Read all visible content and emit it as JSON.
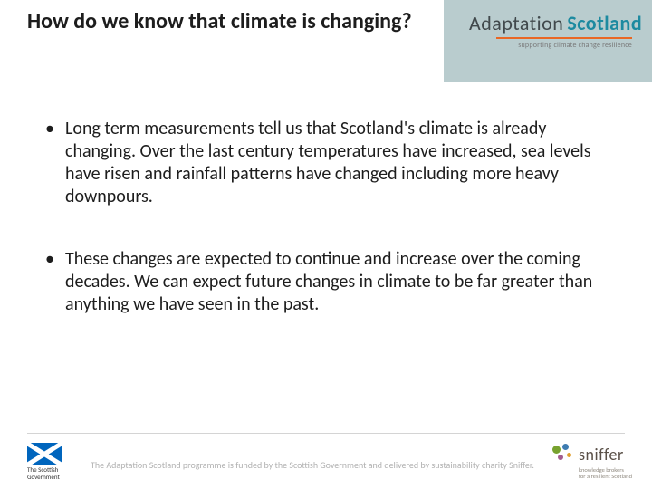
{
  "colors": {
    "header_band": "#b9ccce",
    "title_text": "#1d1d1d",
    "body_text": "#1d1d1d",
    "footer_text": "#b2b2b2",
    "rule": "#d4d4d4",
    "brand_orange": "#e96724",
    "brand_teal": "#1d8aa0",
    "brand_grey": "#41494c",
    "flag_blue": "#0065bd"
  },
  "typography": {
    "title_fontsize_pt": 18,
    "body_fontsize_pt": 15,
    "footer_fontsize_pt": 8
  },
  "header": {
    "title": "How do we know that climate is changing?",
    "brand": {
      "word_a": "Adaptation",
      "word_b": "Scotland",
      "tagline": "supporting climate change resilience"
    }
  },
  "bullets": [
    {
      "text": "Long term measurements tell us that Scotland's climate is already changing. Over the last century temperatures have increased, sea levels have risen and rainfall patterns have changed including more heavy downpours."
    },
    {
      "text": "These changes are expected to continue and increase over the coming decades. We can expect future changes in climate to be far greater than anything we have seen in the past."
    }
  ],
  "footer": {
    "gov_label": "The Scottish Government",
    "attribution": "The Adaptation Scotland programme is funded by the Scottish Government and delivered by sustainability charity Sniffer.",
    "sniffer": {
      "name": "sniffer",
      "tagline_line1": "knowledge brokers",
      "tagline_line2": "for a resilient Scotland"
    }
  }
}
